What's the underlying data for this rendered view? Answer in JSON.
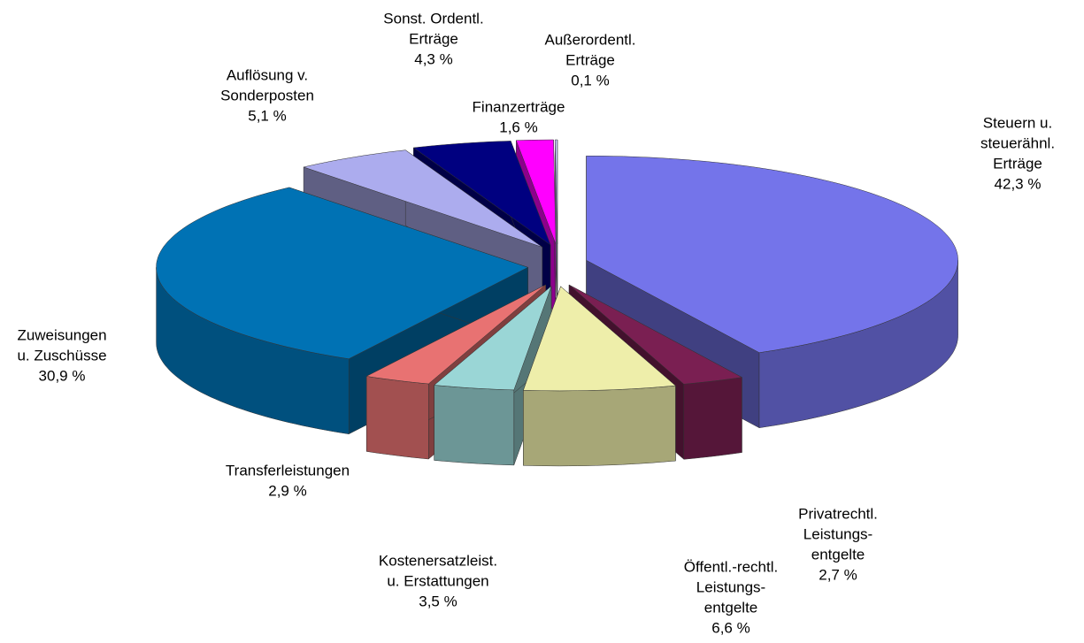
{
  "chart_data": {
    "type": "pie3d",
    "categories": [
      [
        "Steuern u.",
        "steuerähnl.",
        "Erträge"
      ],
      [
        "Privatrechtl.",
        "Leistungs-",
        "entgelte"
      ],
      [
        "Öffentl.-rechtl.",
        "Leistungs-",
        "entgelte"
      ],
      [
        "Kostenersatzleist.",
        "u. Erstattungen"
      ],
      [
        "Transferleistungen"
      ],
      [
        "Zuweisungen",
        "u. Zuschüsse"
      ],
      [
        "Auflösung v.",
        "Sonderposten"
      ],
      [
        "Sonst. Ordentl.",
        "Erträge"
      ],
      [
        "Finanzerträge"
      ],
      [
        "Außerordentl.",
        "Erträge"
      ]
    ],
    "values": [
      42.3,
      2.7,
      6.6,
      3.5,
      2.9,
      30.9,
      5.1,
      4.3,
      1.6,
      0.1
    ],
    "value_labels": [
      "42,3 %",
      "2,7 %",
      "6,6 %",
      "3,5 %",
      "2,9 %",
      "30,9 %",
      "5,1 %",
      "4,3 %",
      "1,6 %",
      "0,1 %"
    ],
    "colors": [
      "#7474ea",
      "#7a1f52",
      "#eeeeaa",
      "#9ad6d6",
      "#e87272",
      "#0072b4",
      "#acacee",
      "#000080",
      "#ff00ff",
      "#c8c8ff"
    ]
  }
}
